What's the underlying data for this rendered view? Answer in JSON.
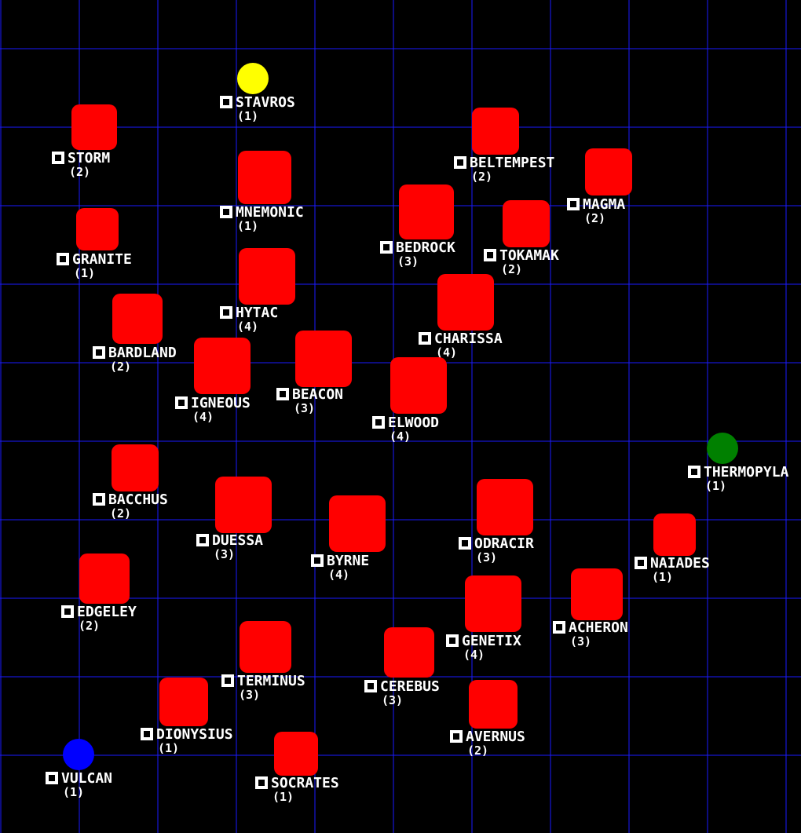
{
  "nodes": [
    {
      "name": "STAVROS",
      "count": "(1)"
    },
    {
      "name": "STORM",
      "count": "(2)"
    },
    {
      "name": "MNEMONIC",
      "count": "(1)"
    },
    {
      "name": "BELTEMPEST",
      "count": "(2)"
    },
    {
      "name": "MAGMA",
      "count": "(2)"
    },
    {
      "name": "BEDROCK",
      "count": "(3)"
    },
    {
      "name": "TOKAMAK",
      "count": "(2)"
    },
    {
      "name": "GRANITE",
      "count": "(1)"
    },
    {
      "name": "HYTAC",
      "count": "(4)"
    },
    {
      "name": "CHARISSA",
      "count": "(4)"
    },
    {
      "name": "BARDLAND",
      "count": "(2)"
    },
    {
      "name": "IGNEOUS",
      "count": "(4)"
    },
    {
      "name": "BEACON",
      "count": "(3)"
    },
    {
      "name": "ELWOOD",
      "count": "(4)"
    },
    {
      "name": "THERMOPYLA",
      "count": "(1)"
    },
    {
      "name": "BACCHUS",
      "count": "(2)"
    },
    {
      "name": "DUESSA",
      "count": "(3)"
    },
    {
      "name": "ODRACIR",
      "count": "(3)"
    },
    {
      "name": "BYRNE",
      "count": "(4)"
    },
    {
      "name": "NAIADES",
      "count": "(1)"
    },
    {
      "name": "EDGELEY",
      "count": "(2)"
    },
    {
      "name": "ACHERON",
      "count": "(3)"
    },
    {
      "name": "GENETIX",
      "count": "(4)"
    },
    {
      "name": "TERMINUS",
      "count": "(3)"
    },
    {
      "name": "CEREBUS",
      "count": "(3)"
    },
    {
      "name": "DIONYSIUS",
      "count": "(1)"
    },
    {
      "name": "AVERNUS",
      "count": "(2)"
    },
    {
      "name": "VULCAN",
      "count": "(1)"
    },
    {
      "name": "SOCRATES",
      "count": "(1)"
    }
  ]
}
